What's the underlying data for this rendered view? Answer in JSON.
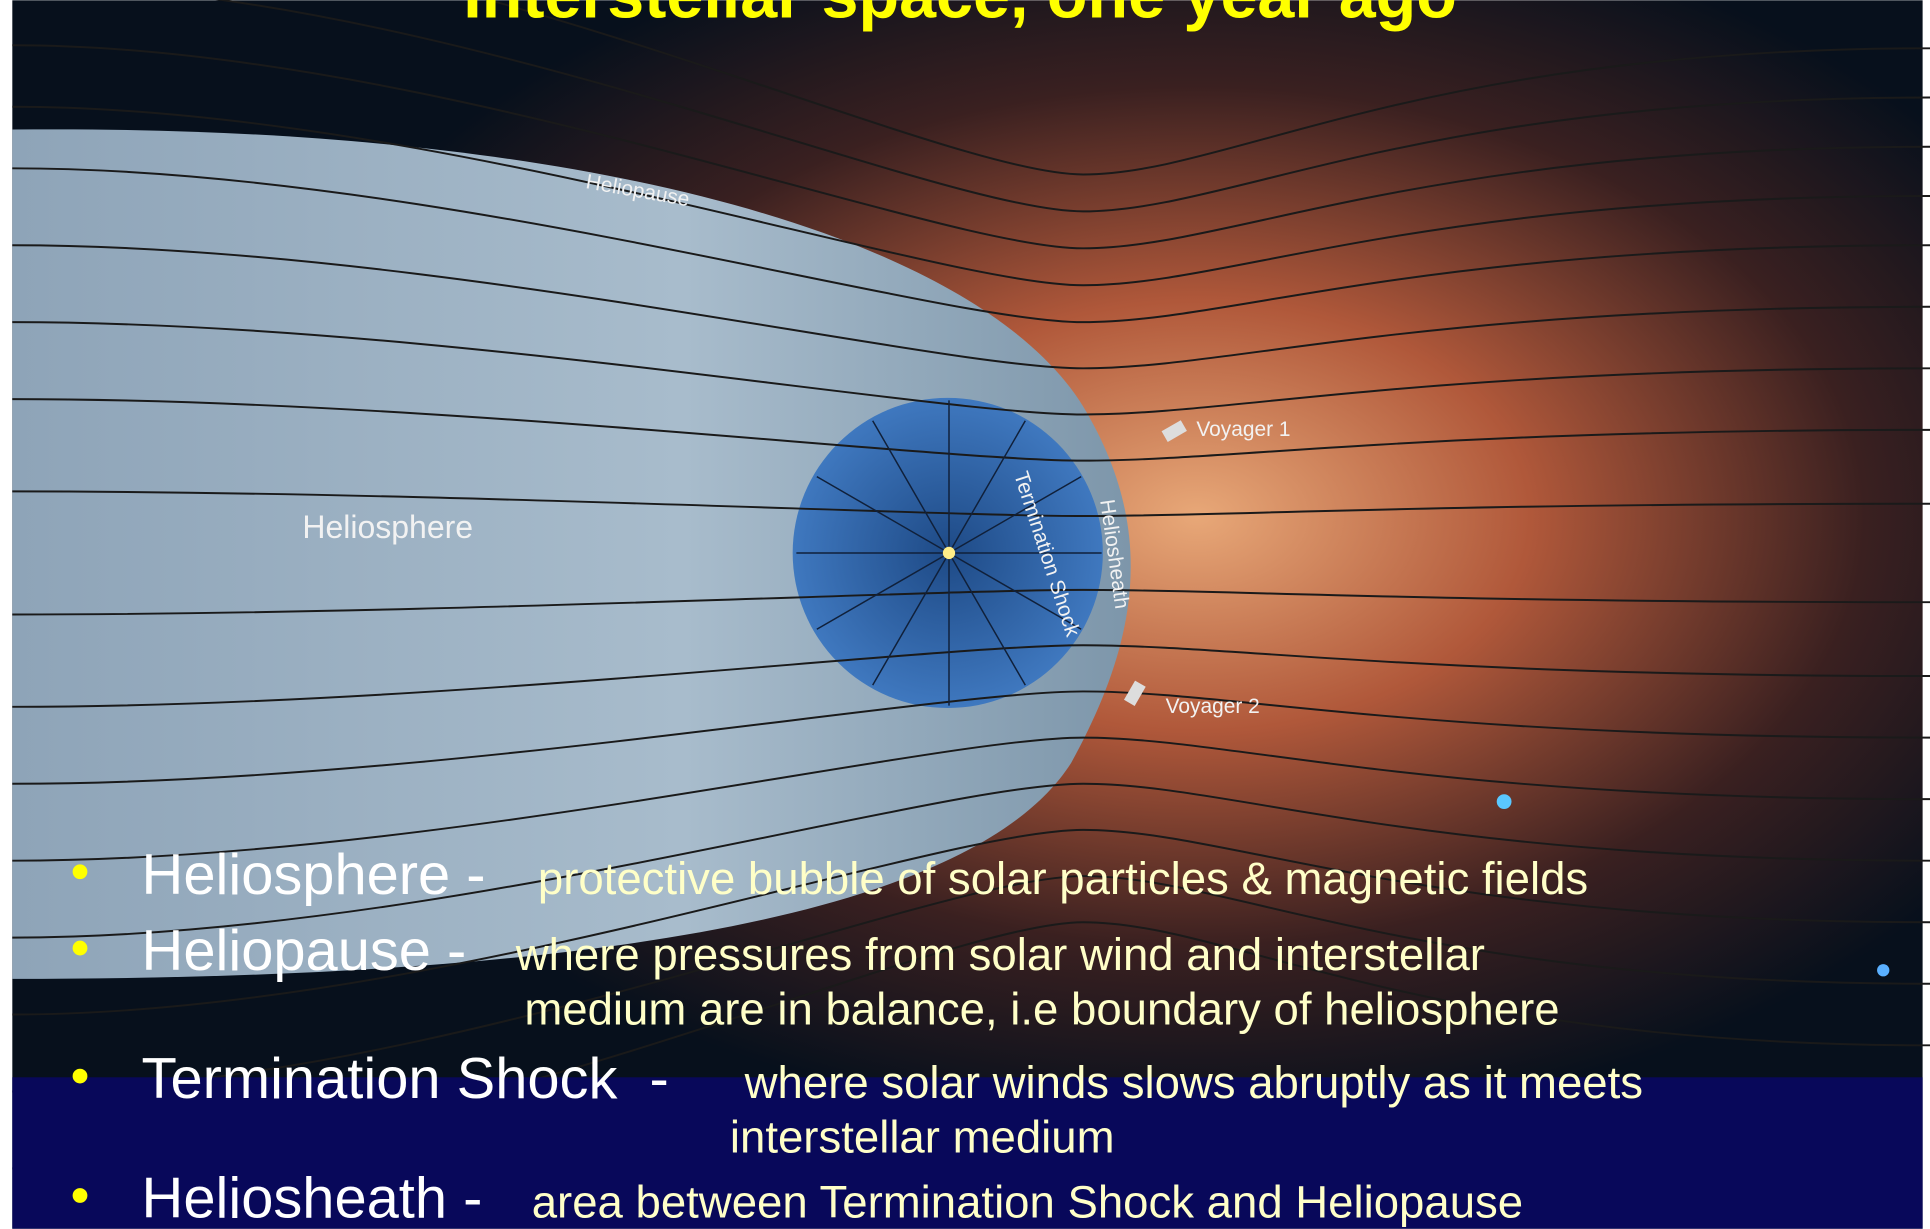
{
  "title": "Interstellar space, one year ago",
  "diagram": {
    "labels": {
      "heliopause": "Heliopause",
      "heliosphere": "Heliosphere",
      "termination_shock": "Termination Shock",
      "heliosheath": "Heliosheath",
      "voyager1": "Voyager 1",
      "voyager2": "Voyager 2"
    }
  },
  "bullets": [
    {
      "term": "Heliosphere -",
      "description": [
        "protective bubble of solar particles & magnetic fields"
      ]
    },
    {
      "term": "Heliopause -",
      "description": [
        "where pressures from solar wind and interstellar",
        "medium are in balance, i.e boundary of heliosphere"
      ]
    },
    {
      "term": "Termination Shock  -",
      "description": [
        "where solar winds slows abruptly as it meets",
        "interstellar medium"
      ]
    },
    {
      "term": "Heliosheath -",
      "description": [
        "area between Termination Shock and Heliopause"
      ]
    }
  ]
}
